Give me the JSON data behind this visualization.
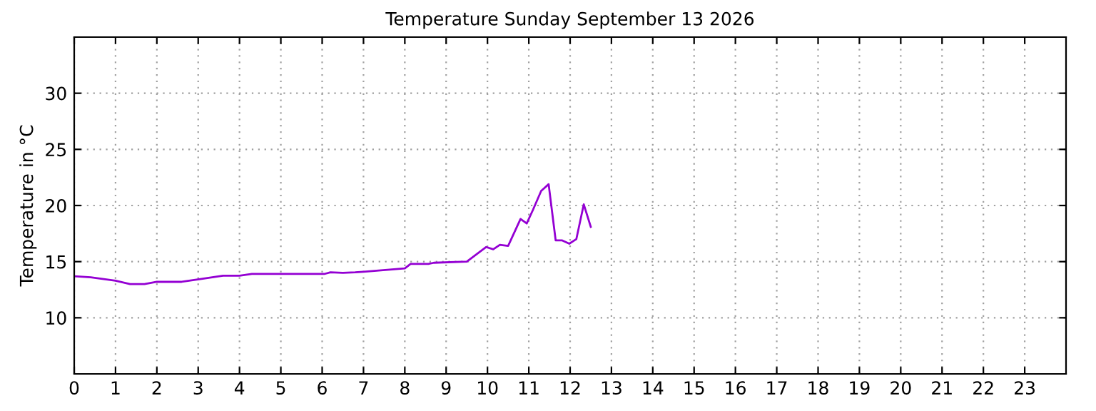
{
  "chart_data": {
    "type": "line",
    "title": "Temperature Sunday September 13 2026",
    "ylabel": "Temperature in °C",
    "x": [
      0,
      0.4,
      1.0,
      1.35,
      1.7,
      2.0,
      2.6,
      3.05,
      3.6,
      4.0,
      4.3,
      6.05,
      6.2,
      6.5,
      6.8,
      7.0,
      8.0,
      8.14,
      8.57,
      8.7,
      9.5,
      9.97,
      10.14,
      10.3,
      10.5,
      10.8,
      10.95,
      11.1,
      11.3,
      11.48,
      11.65,
      11.8,
      11.98,
      12.15,
      12.33,
      12.5
    ],
    "series": [
      {
        "color": "#9400d3",
        "values": [
          13.7,
          13.6,
          13.3,
          13.0,
          13.0,
          13.2,
          13.2,
          13.45,
          13.75,
          13.75,
          13.9,
          13.9,
          14.05,
          14.0,
          14.05,
          14.1,
          14.4,
          14.8,
          14.8,
          14.9,
          15.0,
          16.3,
          16.1,
          16.5,
          16.4,
          18.8,
          18.4,
          19.6,
          21.3,
          21.9,
          16.9,
          16.9,
          16.6,
          17.0,
          20.1,
          18.1
        ]
      }
    ],
    "xlim": [
      0,
      24
    ],
    "xticks": [
      0,
      1,
      2,
      3,
      4,
      5,
      6,
      7,
      8,
      9,
      10,
      11,
      12,
      13,
      14,
      15,
      16,
      17,
      18,
      19,
      20,
      21,
      22,
      23
    ],
    "ylim": [
      5,
      35
    ],
    "yticks": [
      10,
      15,
      20,
      25,
      30
    ],
    "grid": true,
    "line_style": "solid",
    "marker": "none",
    "legend": false
  }
}
